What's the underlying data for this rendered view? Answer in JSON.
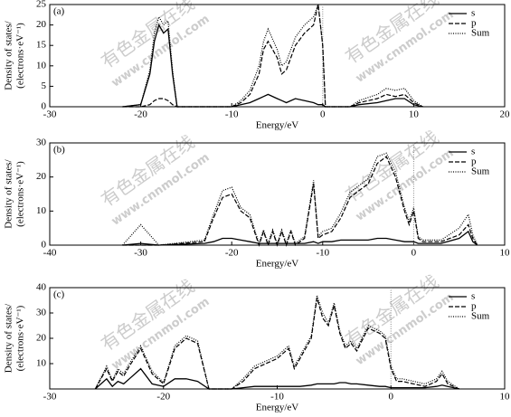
{
  "chart_data": [
    {
      "type": "line",
      "panel_label": "(a)",
      "x_label": "Energy/eV",
      "y_label": [
        "Density of states/",
        "(electrons·eV⁻¹)"
      ],
      "xlim": [
        -30,
        20
      ],
      "xticks": [
        -30,
        -20,
        -10,
        0,
        10,
        20
      ],
      "ylim": [
        0,
        25
      ],
      "yticks": [
        0,
        5,
        10,
        15,
        20,
        25
      ],
      "vline": 0,
      "legend": "top-right",
      "x": [
        -22,
        -20,
        -19,
        -18.5,
        -18,
        -17.5,
        -17,
        -16.5,
        -16,
        -10,
        -9,
        -8,
        -7,
        -6.5,
        -6,
        -5,
        -4.5,
        -4,
        -3,
        -2,
        -1,
        -0.5,
        0,
        0.3,
        3,
        4,
        6,
        7,
        8,
        9,
        10,
        11
      ],
      "series": [
        {
          "name": "s",
          "color": "#000000",
          "style": "solid",
          "values": [
            0,
            0.5,
            8,
            16,
            20,
            18,
            19,
            8,
            0,
            0,
            0.5,
            1,
            2,
            2.5,
            3,
            2,
            1.5,
            1,
            2,
            1.5,
            1,
            0.5,
            0.5,
            0,
            0,
            0.5,
            1,
            1.5,
            2,
            2,
            0.5,
            0
          ]
        },
        {
          "name": "p",
          "color": "#000000",
          "style": "dashed",
          "values": [
            0,
            0,
            0.5,
            1.5,
            2,
            2,
            1.5,
            0.5,
            0,
            0,
            1,
            3,
            8,
            14,
            16,
            12,
            8,
            9,
            15,
            18,
            20,
            25,
            15,
            0,
            0,
            1,
            2,
            3,
            2.5,
            3,
            1,
            0
          ]
        },
        {
          "name": "Sum",
          "color": "#000000",
          "style": "dotted",
          "values": [
            0,
            0.5,
            9,
            18,
            22,
            20,
            21,
            9,
            0,
            0,
            1.5,
            4,
            10,
            16,
            19,
            14,
            10,
            11,
            17,
            20,
            22,
            25,
            15,
            0,
            0,
            1.5,
            3,
            4.5,
            4,
            4.5,
            1.5,
            0
          ]
        }
      ]
    },
    {
      "type": "line",
      "panel_label": "(b)",
      "x_label": "Energy/eV",
      "y_label": [
        "Density of states/",
        "(electrons·eV⁻¹)"
      ],
      "xlim": [
        -40,
        10
      ],
      "xticks": [
        -40,
        -30,
        -20,
        -10,
        0,
        10
      ],
      "ylim": [
        0,
        30
      ],
      "yticks": [
        0,
        10,
        20,
        30
      ],
      "vline": 0,
      "legend": "top-right",
      "x": [
        -32,
        -30,
        -28,
        -23,
        -22,
        -21,
        -20,
        -19,
        -18,
        -17,
        -16.5,
        -16,
        -15.5,
        -15,
        -14.5,
        -14,
        -13.5,
        -13,
        -12,
        -11,
        -10.5,
        -10,
        -9,
        -8,
        -7,
        -6,
        -5,
        -4,
        -3,
        -2,
        -1,
        -0.5,
        0,
        0.5,
        1,
        3,
        5,
        6,
        6.5,
        7
      ],
      "series": [
        {
          "name": "s",
          "color": "#000000",
          "style": "solid",
          "values": [
            0,
            0.5,
            0,
            0.5,
            1,
            2,
            2,
            1.5,
            1,
            0.5,
            0.5,
            0.5,
            0.5,
            0.5,
            0.5,
            0.5,
            0.5,
            0.5,
            0.5,
            1,
            0.5,
            1,
            1,
            1.5,
            1.5,
            1.5,
            1.5,
            2,
            2,
            1.5,
            1,
            1,
            1,
            0.5,
            0.5,
            0.5,
            2,
            4,
            1,
            0
          ]
        },
        {
          "name": "p",
          "color": "#000000",
          "style": "dashed",
          "values": [
            0,
            0,
            0,
            1,
            8,
            14,
            15,
            10,
            8,
            0,
            4,
            0,
            4,
            0,
            4,
            0,
            4,
            0,
            2,
            18,
            2,
            3,
            4,
            8,
            14,
            16,
            18,
            24,
            26,
            20,
            10,
            6,
            10,
            2,
            1,
            1,
            3,
            6,
            2,
            0
          ]
        },
        {
          "name": "Sum",
          "color": "#000000",
          "style": "dotted",
          "values": [
            0,
            6,
            0,
            1.5,
            9,
            16,
            17,
            11,
            9,
            0.5,
            4.5,
            0.5,
            4.5,
            0.5,
            4.5,
            0.5,
            4.5,
            0.5,
            2.5,
            19,
            2.5,
            4,
            5,
            9.5,
            15.5,
            17.5,
            19.5,
            26,
            27,
            21.5,
            11,
            7,
            11,
            2.5,
            1.5,
            1.5,
            5,
            9,
            3,
            0
          ]
        }
      ]
    },
    {
      "type": "line",
      "panel_label": "(c)",
      "x_label": "Energy/eV",
      "y_label": [
        "Density of states/",
        "(electrons·eV⁻¹)"
      ],
      "xlim": [
        -30,
        10
      ],
      "xticks": [
        -30,
        -20,
        -10,
        0,
        10
      ],
      "ylim": [
        0,
        40
      ],
      "yticks": [
        10,
        20,
        30,
        40
      ],
      "vline": 0,
      "legend": "top-right",
      "x": [
        -26,
        -25,
        -24.5,
        -24,
        -23.5,
        -23,
        -22,
        -21,
        -20,
        -19,
        -18,
        -17,
        -16,
        -14,
        -13,
        -12,
        -11,
        -10,
        -9,
        -8.5,
        -8,
        -7,
        -6.5,
        -6,
        -5.5,
        -5,
        -4.5,
        -4,
        -3.5,
        -3,
        -2,
        -1,
        -0.5,
        0,
        0.5,
        1,
        2,
        3,
        4,
        4.5,
        5,
        6
      ],
      "series": [
        {
          "name": "s",
          "color": "#000000",
          "style": "solid",
          "values": [
            0,
            4,
            1,
            3,
            2,
            4,
            8,
            2,
            1,
            4,
            4,
            3,
            0,
            0,
            0.5,
            1,
            1,
            1,
            1,
            1,
            1,
            1.5,
            2,
            2,
            2,
            2,
            2.5,
            2.5,
            2,
            2,
            1.5,
            1,
            1,
            0.5,
            0.5,
            0.5,
            0.5,
            0.5,
            1,
            1.5,
            1,
            0
          ]
        },
        {
          "name": "p",
          "color": "#000000",
          "style": "dashed",
          "values": [
            0,
            8,
            3,
            7,
            5,
            9,
            16,
            6,
            2,
            16,
            20,
            18,
            0,
            0,
            3,
            8,
            10,
            12,
            16,
            8,
            12,
            20,
            36,
            28,
            25,
            33,
            22,
            16,
            18,
            15,
            24,
            22,
            20,
            8,
            3,
            3,
            2,
            1,
            3,
            6,
            2,
            0
          ]
        },
        {
          "name": "Sum",
          "color": "#000000",
          "style": "dotted",
          "values": [
            0,
            9,
            3.5,
            8,
            6,
            10,
            17,
            7,
            2.5,
            17,
            21,
            19,
            0,
            0,
            4,
            9,
            11,
            13,
            17,
            9,
            13,
            21,
            37,
            30,
            26,
            34,
            23,
            17,
            19,
            16,
            25,
            23,
            21,
            9,
            4,
            4,
            3,
            2,
            4,
            7,
            3,
            0
          ]
        }
      ]
    }
  ],
  "watermark": [
    "有色金属在线",
    "www.cnnmol.com"
  ]
}
